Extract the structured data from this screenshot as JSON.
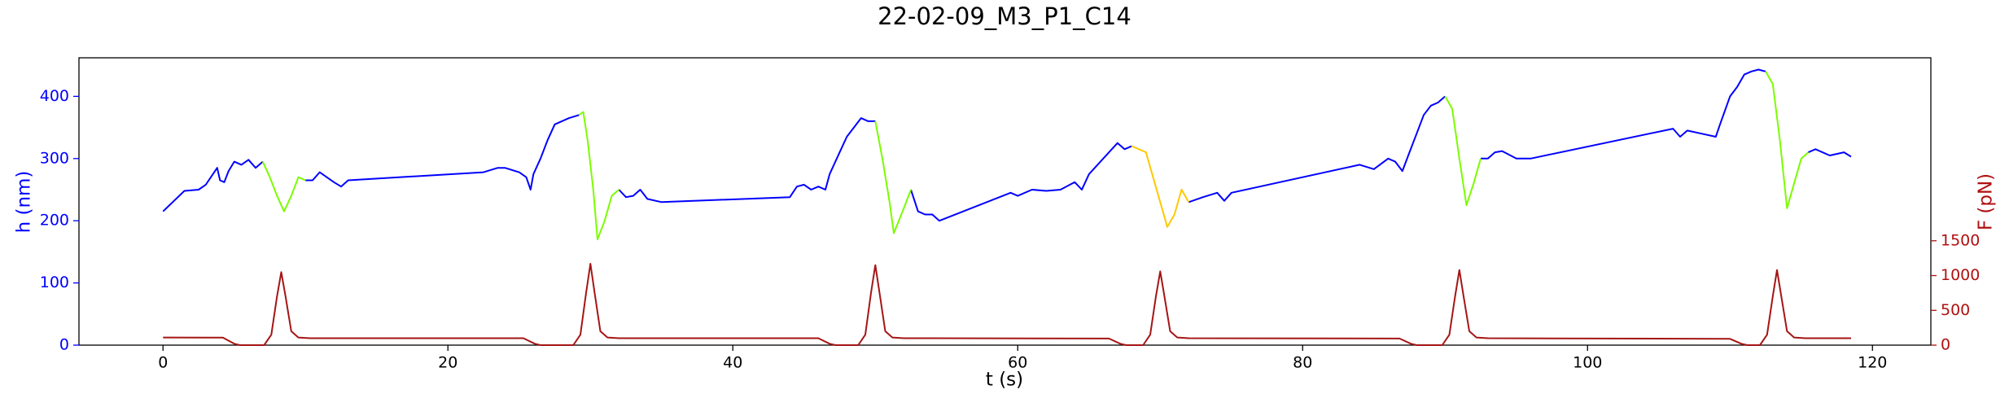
{
  "chart_data": {
    "type": "line",
    "title": "22-02-09_M3_P1_C14",
    "xlabel": "t (s)",
    "ylabel": "h (nm)",
    "y2label": "F (pN)",
    "ylabel_color": "#0000ff",
    "y2label_color": "#b01010",
    "xlim": [
      -5.9,
      124.1
    ],
    "xticks": [
      0,
      20,
      40,
      60,
      80,
      100,
      120
    ],
    "ylim": [
      0,
      462
    ],
    "yticks": [
      0,
      100,
      200,
      300,
      400
    ],
    "y2lim": [
      0,
      4130
    ],
    "y2ticks": [
      0,
      500,
      1000,
      1500
    ],
    "grid": false,
    "series": [
      {
        "color": "#0000ff",
        "x": [
          0,
          1.5,
          2.5,
          3,
          3.8,
          4,
          4.3,
          4.6,
          5,
          5.5,
          6,
          6.5,
          7,
          null,
          10,
          10.5,
          11,
          12,
          12.5,
          13,
          22.5,
          23.5,
          24,
          25,
          25.5,
          25.8,
          26,
          26.5,
          27,
          27.5,
          28,
          28.5,
          29.2,
          null,
          32,
          32.5,
          33,
          33.5,
          34,
          35,
          44,
          44.5,
          45,
          45.5,
          46,
          46.5,
          46.8,
          47.5,
          48,
          48.5,
          49,
          49.5,
          50,
          null,
          52.5,
          53,
          53.5,
          54,
          54.5,
          59.5,
          60,
          61,
          62,
          63,
          64,
          64.5,
          65,
          66,
          67,
          67.5,
          68,
          null,
          72,
          73,
          74,
          74.5,
          75,
          84,
          85,
          86,
          86.5,
          87,
          87.5,
          88,
          88.5,
          89,
          89.5,
          90,
          null,
          92.5,
          93,
          93.5,
          94,
          95,
          96,
          106,
          106.5,
          107,
          108,
          109,
          109.3,
          110,
          110.5,
          111,
          111.5,
          112,
          112.5,
          null,
          115.5,
          116,
          117,
          118,
          118.5
        ],
        "values": [
          215,
          248,
          250,
          258,
          285,
          265,
          262,
          280,
          295,
          290,
          298,
          285,
          295,
          null,
          265,
          265,
          278,
          262,
          255,
          265,
          278,
          285,
          285,
          278,
          270,
          250,
          275,
          300,
          330,
          355,
          360,
          365,
          370,
          null,
          250,
          238,
          240,
          250,
          235,
          230,
          238,
          255,
          258,
          250,
          255,
          250,
          275,
          310,
          335,
          350,
          365,
          360,
          360,
          null,
          250,
          215,
          210,
          210,
          200,
          245,
          240,
          250,
          248,
          250,
          262,
          250,
          275,
          300,
          325,
          315,
          320,
          null,
          230,
          238,
          245,
          232,
          245,
          290,
          283,
          300,
          295,
          280,
          310,
          340,
          370,
          385,
          390,
          400,
          null,
          300,
          300,
          310,
          312,
          300,
          300,
          348,
          335,
          345,
          340,
          335,
          355,
          400,
          415,
          435,
          440,
          443,
          440,
          null,
          310,
          315,
          305,
          310,
          303
        ]
      },
      {
        "color": "#7cfc00",
        "x": [
          7,
          7.5,
          8,
          8.5,
          9,
          9.5,
          10,
          null,
          29.2,
          29.5,
          29.8,
          30.2,
          30.5,
          31,
          31.5,
          32,
          null,
          50,
          50.5,
          51,
          51.3,
          52,
          52.5,
          null,
          90,
          90.5,
          91,
          91.5,
          92,
          92.5,
          null,
          112.5,
          113,
          113.5,
          114,
          114.5,
          115,
          115.5
        ],
        "values": [
          295,
          270,
          240,
          215,
          240,
          270,
          265,
          null,
          370,
          375,
          330,
          250,
          170,
          200,
          240,
          250,
          null,
          360,
          300,
          230,
          180,
          220,
          250,
          null,
          400,
          380,
          300,
          225,
          260,
          300,
          null,
          440,
          420,
          330,
          220,
          260,
          300,
          310
        ]
      },
      {
        "color": "#ffc800",
        "x": [
          68,
          69,
          69.5,
          70,
          70.5,
          71,
          71.5,
          72
        ],
        "values": [
          320,
          310,
          270,
          230,
          190,
          210,
          250,
          230
        ]
      },
      {
        "color": "#a51515",
        "axis": "y2",
        "x": [
          0,
          4.2,
          5.0,
          5.4,
          7.1,
          7.6,
          8.0,
          8.3,
          8.6,
          9.0,
          9.5,
          10.3,
          25.3,
          26.1,
          26.5,
          28.8,
          29.3,
          29.7,
          30.0,
          30.3,
          30.7,
          31.2,
          32.0,
          46.0,
          46.8,
          47.2,
          48.8,
          49.3,
          49.7,
          50.0,
          50.3,
          50.7,
          51.2,
          52.0,
          66.4,
          67.2,
          67.6,
          68.8,
          69.3,
          69.7,
          70.0,
          70.3,
          70.7,
          71.2,
          72.0,
          86.8,
          87.6,
          88.0,
          89.8,
          90.3,
          90.7,
          91.0,
          91.3,
          91.7,
          92.2,
          93.0,
          110.0,
          110.8,
          111.2,
          112.1,
          112.6,
          113.0,
          113.3,
          113.6,
          114.0,
          114.5,
          115.3,
          118.5
        ],
        "values": [
          110,
          108,
          20,
          0,
          0,
          150,
          700,
          1050,
          700,
          200,
          110,
          100,
          100,
          20,
          0,
          0,
          150,
          750,
          1170,
          750,
          200,
          110,
          100,
          100,
          20,
          0,
          0,
          150,
          750,
          1150,
          750,
          200,
          110,
          100,
          95,
          20,
          0,
          0,
          150,
          700,
          1060,
          700,
          200,
          110,
          100,
          95,
          20,
          0,
          0,
          150,
          700,
          1080,
          700,
          200,
          110,
          100,
          90,
          20,
          0,
          0,
          150,
          700,
          1080,
          700,
          200,
          110,
          100,
          100
        ]
      }
    ]
  }
}
